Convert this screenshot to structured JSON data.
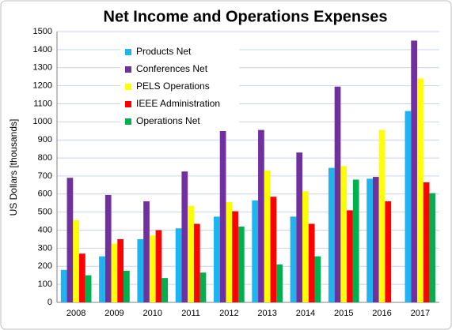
{
  "chart_data": {
    "type": "bar",
    "title": "Net Income and Operations Expenses",
    "ylabel": "US Dollars [thousands]",
    "categories": [
      "2008",
      "2009",
      "2010",
      "2011",
      "2012",
      "2013",
      "2014",
      "2015",
      "2016",
      "2017"
    ],
    "series": [
      {
        "name": "Products Net",
        "color": "#1fb4f0",
        "values": [
          180,
          255,
          350,
          410,
          475,
          565,
          475,
          745,
          685,
          1060
        ]
      },
      {
        "name": "Conferences Net",
        "color": "#7030a0",
        "values": [
          690,
          595,
          560,
          725,
          960,
          955,
          830,
          1195,
          695,
          1450
        ]
      },
      {
        "name": "PELS Operations",
        "color": "#ffff00",
        "values": [
          455,
          325,
          370,
          535,
          555,
          730,
          615,
          755,
          955,
          1240
        ]
      },
      {
        "name": "IEEE Administration",
        "color": "#ff0000",
        "values": [
          270,
          350,
          400,
          435,
          505,
          585,
          435,
          510,
          560,
          665
        ]
      },
      {
        "name": "Operations Net",
        "color": "#00b050",
        "values": [
          150,
          175,
          135,
          165,
          420,
          210,
          255,
          680,
          null,
          605
        ]
      }
    ],
    "ylim": [
      0,
      1500
    ],
    "yticks": [
      0,
      100,
      200,
      300,
      400,
      500,
      600,
      700,
      800,
      900,
      1000,
      1100,
      1200,
      1300,
      1400,
      1500
    ],
    "grid": true,
    "legend": "upper left"
  }
}
